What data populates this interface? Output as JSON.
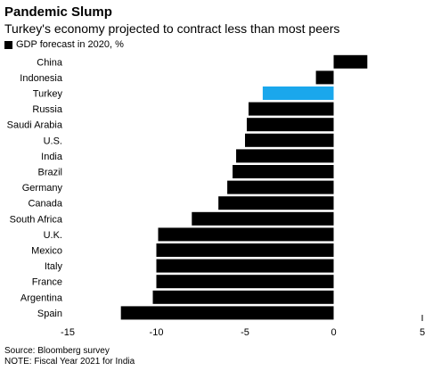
{
  "chart_data": {
    "type": "bar",
    "orientation": "horizontal",
    "title": "Pandemic Slump",
    "subtitle": "Turkey's economy projected to contract less than most peers",
    "legend": "GDP forecast in 2020, %",
    "categories": [
      "China",
      "Indonesia",
      "Turkey",
      "Russia",
      "Saudi Arabia",
      "U.S.",
      "India",
      "Brazil",
      "Germany",
      "Canada",
      "South Africa",
      "U.K.",
      "Mexico",
      "Italy",
      "France",
      "Argentina",
      "Spain"
    ],
    "values": [
      1.9,
      -1.0,
      -4.0,
      -4.8,
      -4.9,
      -5.0,
      -5.5,
      -5.7,
      -6.0,
      -6.5,
      -8.0,
      -9.9,
      -10.0,
      -10.0,
      -10.0,
      -10.2,
      -12.0
    ],
    "xlim": [
      -15,
      5
    ],
    "xticks": [
      "-15",
      "-10",
      "-5",
      "0",
      "5"
    ],
    "highlight": "Turkey",
    "colors": {
      "bar": "#000000",
      "highlight": "#1aa7ec"
    }
  },
  "source": "Source: Bloomberg survey",
  "note": "NOTE: Fiscal Year 2021 for India"
}
